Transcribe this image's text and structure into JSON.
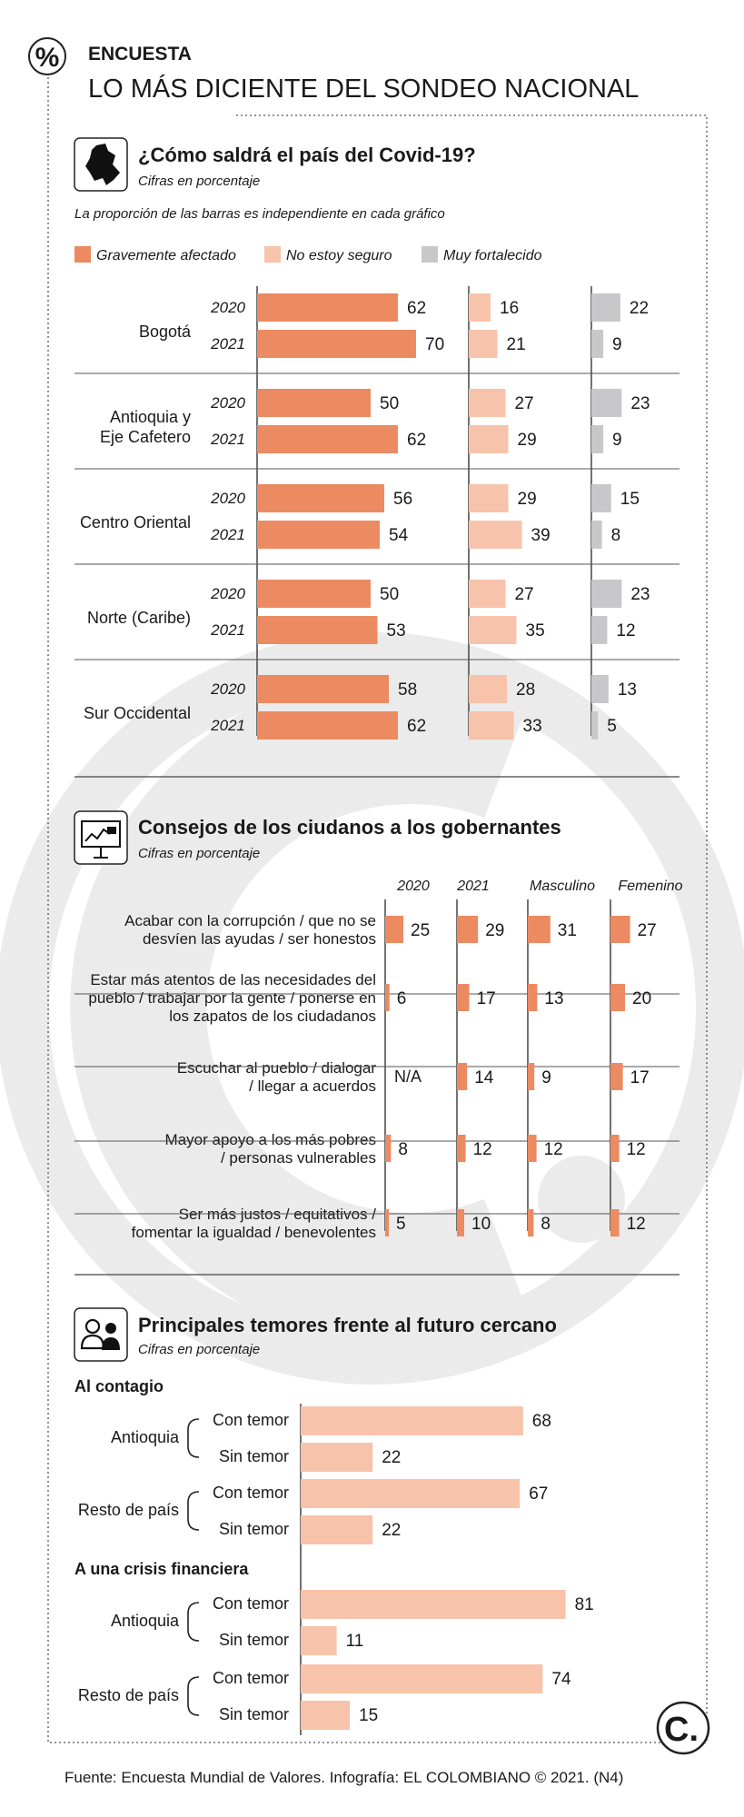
{
  "header": {
    "badge_symbol": "%",
    "kicker": "ENCUESTA",
    "title": "LO MÁS DICIENTE DEL SONDEO NACIONAL"
  },
  "colors": {
    "orange": "#EC8A62",
    "peach": "#F7C3AA",
    "gray": "#C8C8CB",
    "line": "#444444",
    "watermark": "#EBEBEB"
  },
  "footer": {
    "source": "Fuente: Encuesta Mundial de Valores. Infografía: EL COLOMBIANO © 2021. (N4)",
    "logo": "C."
  },
  "chart_data": [
    {
      "type": "bar",
      "title": "¿Cómo saldrá el país del Covid-19?",
      "subtitle": "Cifras en porcentaje",
      "note": "La proporción de las barras es independiente en cada gráfico",
      "legend": [
        "Gravemente afectado",
        "No estoy seguro",
        "Muy fortalecido"
      ],
      "categories": [
        {
          "label": [
            "Bogotá"
          ],
          "rows": [
            {
              "year": "2020",
              "values": [
                62,
                16,
                22
              ]
            },
            {
              "year": "2021",
              "values": [
                70,
                21,
                9
              ]
            }
          ]
        },
        {
          "label": [
            "Antioquia y",
            "Eje Cafetero"
          ],
          "rows": [
            {
              "year": "2020",
              "values": [
                50,
                27,
                23
              ]
            },
            {
              "year": "2021",
              "values": [
                62,
                29,
                9
              ]
            }
          ]
        },
        {
          "label": [
            "Centro Oriental"
          ],
          "rows": [
            {
              "year": "2020",
              "values": [
                56,
                29,
                15
              ]
            },
            {
              "year": "2021",
              "values": [
                54,
                39,
                8
              ]
            }
          ]
        },
        {
          "label": [
            "Norte (Caribe)"
          ],
          "rows": [
            {
              "year": "2020",
              "values": [
                50,
                27,
                23
              ]
            },
            {
              "year": "2021",
              "values": [
                53,
                35,
                12
              ]
            }
          ]
        },
        {
          "label": [
            "Sur Occidental"
          ],
          "rows": [
            {
              "year": "2020",
              "values": [
                58,
                28,
                13
              ]
            },
            {
              "year": "2021",
              "values": [
                62,
                33,
                5
              ]
            }
          ]
        }
      ]
    },
    {
      "type": "bar",
      "title": "Consejos de los ciudanos a los gobernantes",
      "subtitle": "Cifras en porcentaje",
      "columns": [
        "2020",
        "2021",
        "Masculino",
        "Femenino"
      ],
      "rows": [
        {
          "label": [
            "Acabar con la corrupción / que no se",
            "desvíen las ayudas / ser honestos"
          ],
          "values": [
            25,
            29,
            31,
            27
          ]
        },
        {
          "label": [
            "Estar más atentos de las necesidades del",
            "pueblo / trabajar por la gente / ponerse en",
            "los zapatos de los ciudadanos"
          ],
          "values": [
            6,
            17,
            13,
            20
          ]
        },
        {
          "label": [
            "Escuchar al pueblo / dialogar",
            "/ llegar a acuerdos"
          ],
          "values": [
            null,
            14,
            9,
            17
          ],
          "na_label": "N/A"
        },
        {
          "label": [
            "Mayor apoyo a los más pobres",
            "/ personas vulnerables"
          ],
          "values": [
            8,
            12,
            12,
            12
          ]
        },
        {
          "label": [
            "Ser más justos / equitativos /",
            "fomentar la igualdad / benevolentes"
          ],
          "values": [
            5,
            10,
            8,
            12
          ]
        }
      ]
    },
    {
      "type": "bar",
      "title": "Principales temores frente al futuro cercano",
      "subtitle": "Cifras en porcentaje",
      "groups": [
        {
          "heading": "Al contagio",
          "regions": [
            {
              "label": "Antioquia",
              "bars": [
                {
                  "label": "Con temor",
                  "value": 68
                },
                {
                  "label": "Sin temor",
                  "value": 22
                }
              ]
            },
            {
              "label": "Resto de país",
              "bars": [
                {
                  "label": "Con temor",
                  "value": 67
                },
                {
                  "label": "Sin temor",
                  "value": 22
                }
              ]
            }
          ]
        },
        {
          "heading": "A una crisis financiera",
          "regions": [
            {
              "label": "Antioquia",
              "bars": [
                {
                  "label": "Con temor",
                  "value": 81
                },
                {
                  "label": "Sin temor",
                  "value": 11
                }
              ]
            },
            {
              "label": "Resto de país",
              "bars": [
                {
                  "label": "Con temor",
                  "value": 74
                },
                {
                  "label": "Sin temor",
                  "value": 15
                }
              ]
            }
          ]
        }
      ]
    }
  ]
}
